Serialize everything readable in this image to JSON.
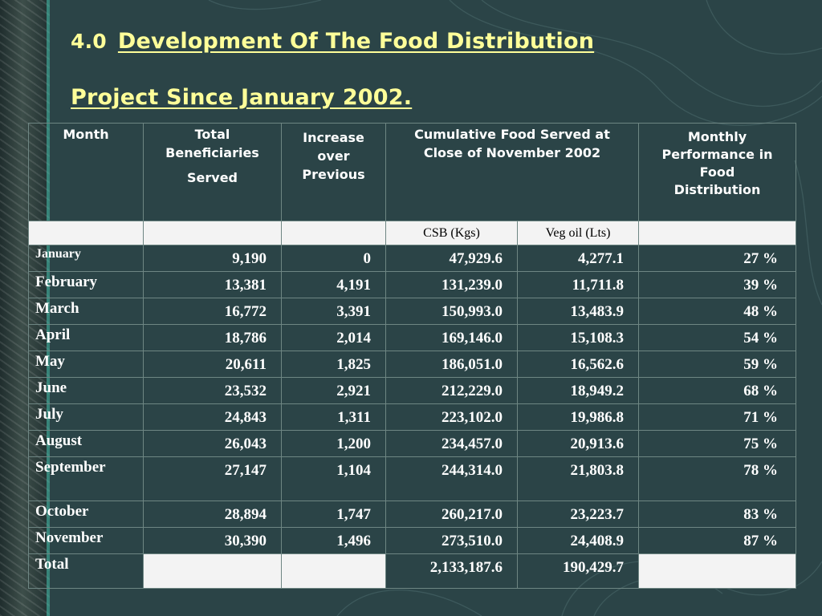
{
  "slide": {
    "section_number": "4.0",
    "title_line1": "Development Of The Food Distribution",
    "title_line2": "Project Since January 2002."
  },
  "table": {
    "headers": {
      "month": "Month",
      "total_beneficiaries": "Total Beneficiaries",
      "served": "Served",
      "increase": "Increase over Previous",
      "cumulative": "Cumulative Food Served at Close of November 2002",
      "performance": "Monthly Performance in Food Distribution",
      "csb": "CSB (Kgs)",
      "veg_oil": "Veg oil (Lts)"
    },
    "rows": [
      {
        "month": "January",
        "total": "9,190",
        "increase": "0",
        "csb": "47,929.6",
        "oil": "4,277.1",
        "perf": "27 %"
      },
      {
        "month": "February",
        "total": "13,381",
        "increase": "4,191",
        "csb": "131,239.0",
        "oil": "11,711.8",
        "perf": "39 %"
      },
      {
        "month": "March",
        "total": "16,772",
        "increase": "3,391",
        "csb": "150,993.0",
        "oil": "13,483.9",
        "perf": "48 %"
      },
      {
        "month": "April",
        "total": "18,786",
        "increase": "2,014",
        "csb": "169,146.0",
        "oil": "15,108.3",
        "perf": "54 %"
      },
      {
        "month": "May",
        "total": "20,611",
        "increase": "1,825",
        "csb": "186,051.0",
        "oil": "16,562.6",
        "perf": "59 %"
      },
      {
        "month": "June",
        "total": "23,532",
        "increase": "2,921",
        "csb": "212,229.0",
        "oil": "18,949.2",
        "perf": "68 %"
      },
      {
        "month": "July",
        "total": "24,843",
        "increase": "1,311",
        "csb": "223,102.0",
        "oil": "19,986.8",
        "perf": "71 %"
      },
      {
        "month": "August",
        "total": "26,043",
        "increase": "1,200",
        "csb": "234,457.0",
        "oil": "20,913.6",
        "perf": "75 %"
      },
      {
        "month": "September",
        "total": "27,147",
        "increase": "1,104",
        "csb": "244,314.0",
        "oil": "21,803.8",
        "perf": "78 %"
      },
      {
        "month": "October",
        "total": "28,894",
        "increase": "1,747",
        "csb": "260,217.0",
        "oil": "23,223.7",
        "perf": "83 %"
      },
      {
        "month": "November",
        "total": "30,390",
        "increase": "1,496",
        "csb": "273,510.0",
        "oil": "24,408.9",
        "perf": "87 %"
      }
    ],
    "total_row": {
      "label": "Total",
      "csb": "2,133,187.6",
      "oil": "190,429.7"
    }
  }
}
